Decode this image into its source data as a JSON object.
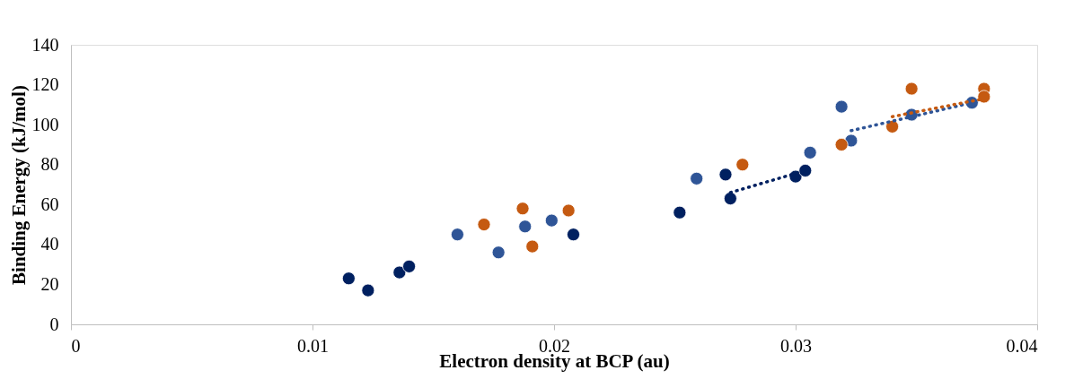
{
  "chart_data": {
    "type": "scatter",
    "xlabel": "Electron density at BCP (au)",
    "ylabel": "Binding Energy (kJ/mol)",
    "xlim": [
      0,
      0.04
    ],
    "xticks": [
      0,
      0.01,
      0.02,
      0.03,
      0.04
    ],
    "ylim": [
      0,
      140
    ],
    "yticks": [
      0,
      20,
      40,
      60,
      80,
      100,
      120,
      140
    ],
    "grid": false,
    "marker": "circle",
    "series": [
      {
        "color": "#002060",
        "x": [
          0.0115,
          0.0123,
          0.0136,
          0.014,
          0.0208,
          0.0252,
          0.0271,
          0.0273,
          0.03,
          0.0304
        ],
        "values": [
          23,
          17,
          26,
          29,
          45,
          56,
          75,
          63,
          74,
          77
        ]
      },
      {
        "color": "#2f5597",
        "x": [
          0.016,
          0.0177,
          0.0188,
          0.0199,
          0.0259,
          0.0306,
          0.0319,
          0.0323,
          0.0348,
          0.0373
        ],
        "values": [
          45,
          36,
          49,
          52,
          73,
          86,
          109,
          92,
          105,
          111
        ]
      },
      {
        "color": "#c55a11",
        "x": [
          0.0171,
          0.0187,
          0.0191,
          0.0206,
          0.0278,
          0.0319,
          0.0348,
          0.034,
          0.0378,
          0.0378
        ],
        "values": [
          50,
          58,
          39,
          57,
          80,
          90,
          118,
          99,
          118,
          114
        ]
      },
      {
        "type": "line",
        "line_style": "dotted",
        "marker": "none",
        "color": "#002060",
        "x": [
          0.0273,
          0.0304
        ],
        "values": [
          66,
          77
        ]
      },
      {
        "type": "line",
        "line_style": "dotted",
        "marker": "none",
        "color": "#2f5597",
        "x": [
          0.0323,
          0.0373
        ],
        "values": [
          97,
          111
        ]
      },
      {
        "type": "line",
        "line_style": "dotted",
        "marker": "none",
        "color": "#c55a11",
        "x": [
          0.034,
          0.0378
        ],
        "values": [
          104,
          113
        ]
      }
    ]
  }
}
